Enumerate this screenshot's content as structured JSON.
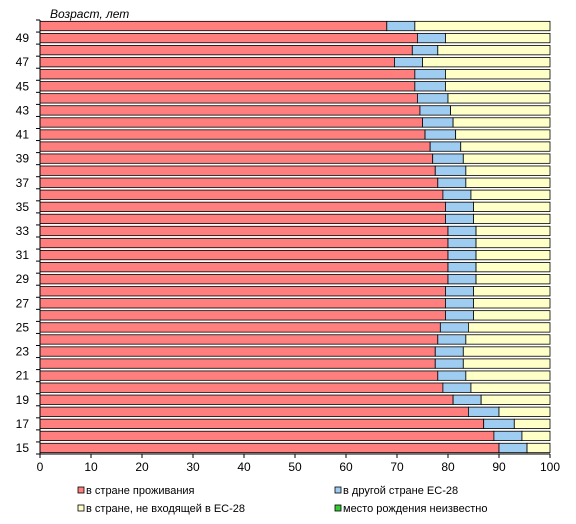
{
  "chart_data": {
    "type": "bar",
    "orientation": "horizontal",
    "stacked": true,
    "title": "",
    "ylabel": "Возраст, лет",
    "xlabel": "",
    "xlim": [
      0,
      100
    ],
    "x_ticks": [
      "0",
      "10",
      "20",
      "30",
      "40",
      "50",
      "60",
      "70",
      "80",
      "90",
      "100"
    ],
    "grid": false,
    "legend_position": "bottom",
    "categories": [
      15,
      16,
      17,
      18,
      19,
      20,
      21,
      22,
      23,
      24,
      25,
      26,
      27,
      28,
      29,
      30,
      31,
      32,
      33,
      34,
      35,
      36,
      37,
      38,
      39,
      40,
      41,
      42,
      43,
      44,
      45,
      46,
      47,
      48,
      49,
      50
    ],
    "category_labels_shown": [
      "15",
      "17",
      "19",
      "21",
      "23",
      "25",
      "27",
      "29",
      "31",
      "33",
      "35",
      "37",
      "39",
      "41",
      "43",
      "45",
      "47",
      "49"
    ],
    "series": [
      {
        "name": "в стране проживания",
        "color": "#ff7f7f",
        "values": [
          90.0,
          89.0,
          87.0,
          84.0,
          81.0,
          79.0,
          78.0,
          77.5,
          77.5,
          78.0,
          78.5,
          79.5,
          79.5,
          79.5,
          80.0,
          80.0,
          80.0,
          80.0,
          80.0,
          79.5,
          79.5,
          79.0,
          78.0,
          77.5,
          77.0,
          76.5,
          75.5,
          75.0,
          74.5,
          74.0,
          73.5,
          73.5,
          69.5,
          73.0,
          74.0,
          68.0
        ]
      },
      {
        "name": "в другой стране ЕС-28",
        "color": "#9fcdf2",
        "values": [
          5.5,
          5.5,
          6.0,
          6.0,
          5.5,
          5.5,
          5.5,
          5.5,
          5.5,
          5.5,
          5.5,
          5.5,
          5.5,
          5.5,
          5.5,
          5.5,
          5.5,
          5.5,
          5.5,
          5.5,
          5.5,
          5.5,
          5.5,
          6.0,
          6.0,
          6.0,
          6.0,
          6.0,
          6.0,
          6.0,
          6.0,
          6.0,
          5.5,
          5.0,
          5.5,
          5.5
        ]
      },
      {
        "name": "в стране, не входящей в ЕС-28",
        "color": "#ffffc8",
        "values": [
          4.5,
          5.5,
          7.0,
          10.0,
          13.5,
          15.5,
          16.5,
          17.0,
          17.0,
          16.5,
          16.0,
          15.0,
          15.0,
          15.0,
          14.5,
          14.5,
          14.5,
          14.5,
          14.5,
          15.0,
          15.0,
          15.5,
          16.5,
          16.5,
          17.0,
          17.5,
          18.5,
          19.0,
          19.5,
          20.0,
          20.5,
          20.5,
          25.0,
          22.0,
          20.5,
          26.5
        ]
      },
      {
        "name": "место рождения неизвестно",
        "color": "#33cc33",
        "values": [
          0,
          0,
          0,
          0,
          0,
          0,
          0,
          0,
          0,
          0,
          0,
          0,
          0,
          0,
          0,
          0,
          0,
          0,
          0,
          0,
          0,
          0,
          0,
          0,
          0,
          0,
          0,
          0,
          0,
          0,
          0,
          0,
          0,
          0,
          0,
          0
        ]
      }
    ]
  }
}
